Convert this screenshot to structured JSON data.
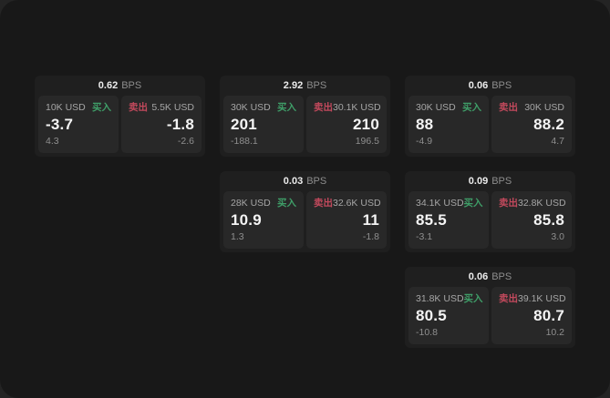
{
  "labels": {
    "bps_unit": "BPS",
    "buy": "买入",
    "sell": "卖出"
  },
  "colors": {
    "buy_green": "#3f9e68",
    "sell_red": "#c2495c",
    "page_bg": "#181818",
    "card_bg": "#1f1f1f",
    "panel_bg": "#282828"
  },
  "cards": [
    {
      "bps": "0.62",
      "buy": {
        "amount": "10K USD",
        "price": "-3.7",
        "delta": "4.3"
      },
      "sell": {
        "amount": "5.5K USD",
        "price": "-1.8",
        "delta": "-2.6"
      }
    },
    {
      "bps": "2.92",
      "buy": {
        "amount": "30K USD",
        "price": "201",
        "delta": "-188.1"
      },
      "sell": {
        "amount": "30.1K USD",
        "price": "210",
        "delta": "196.5"
      }
    },
    {
      "bps": "0.06",
      "buy": {
        "amount": "30K USD",
        "price": "88",
        "delta": "-4.9"
      },
      "sell": {
        "amount": "30K USD",
        "price": "88.2",
        "delta": "4.7"
      }
    },
    {
      "bps": "0.03",
      "buy": {
        "amount": "28K USD",
        "price": "10.9",
        "delta": "1.3"
      },
      "sell": {
        "amount": "32.6K USD",
        "price": "11",
        "delta": "-1.8"
      }
    },
    {
      "bps": "0.09",
      "buy": {
        "amount": "34.1K USD",
        "price": "85.5",
        "delta": "-3.1"
      },
      "sell": {
        "amount": "32.8K USD",
        "price": "85.8",
        "delta": "3.0"
      }
    },
    {
      "bps": "0.06",
      "buy": {
        "amount": "31.8K USD",
        "price": "80.5",
        "delta": "-10.8"
      },
      "sell": {
        "amount": "39.1K USD",
        "price": "80.7",
        "delta": "10.2"
      }
    }
  ]
}
